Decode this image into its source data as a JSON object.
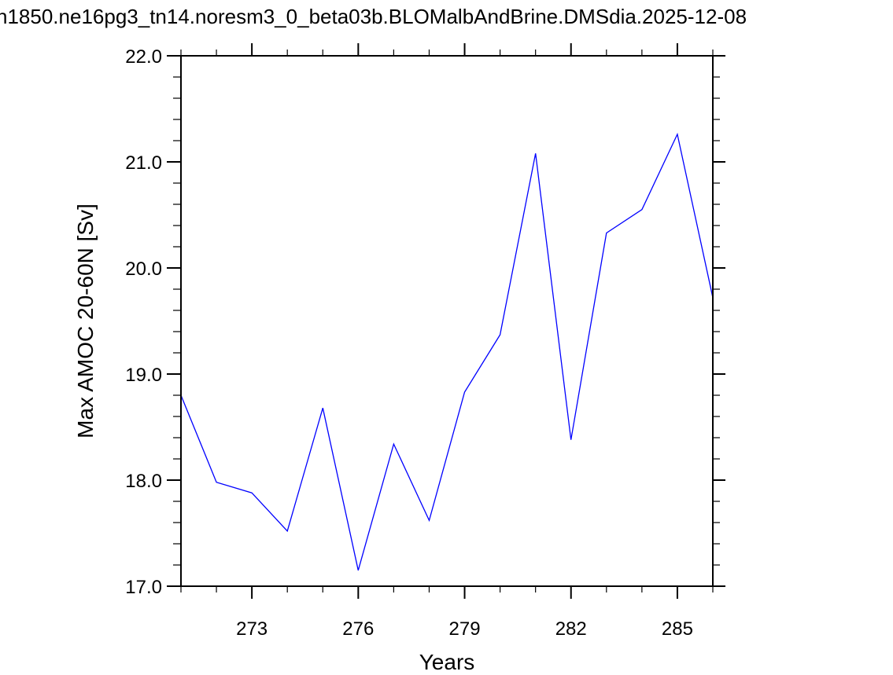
{
  "title": "n1850.ne16pg3_tn14.noresm3_0_beta03b.BLOMalbAndBrine.DMSdia.2025-12-08",
  "colors": {
    "series": "#0000ff",
    "axis": "#000000"
  },
  "chart_data": {
    "type": "line",
    "xlabel": "Years",
    "ylabel": "Max AMOC 20-60N [Sv]",
    "xlim": [
      271,
      286
    ],
    "ylim": [
      17.0,
      22.0
    ],
    "xticks": [
      273,
      276,
      279,
      282,
      285
    ],
    "yticks": [
      "17.0",
      "18.0",
      "19.0",
      "20.0",
      "21.0",
      "22.0"
    ],
    "series": [
      {
        "x": [
          271,
          272,
          273,
          274,
          275,
          276,
          277,
          278,
          279,
          280,
          281,
          282,
          283,
          284,
          285,
          286
        ],
        "values": [
          18.8,
          17.98,
          17.88,
          17.52,
          18.68,
          17.15,
          18.34,
          17.62,
          18.83,
          19.37,
          21.08,
          18.38,
          20.33,
          20.55,
          21.26,
          19.72
        ]
      }
    ]
  }
}
